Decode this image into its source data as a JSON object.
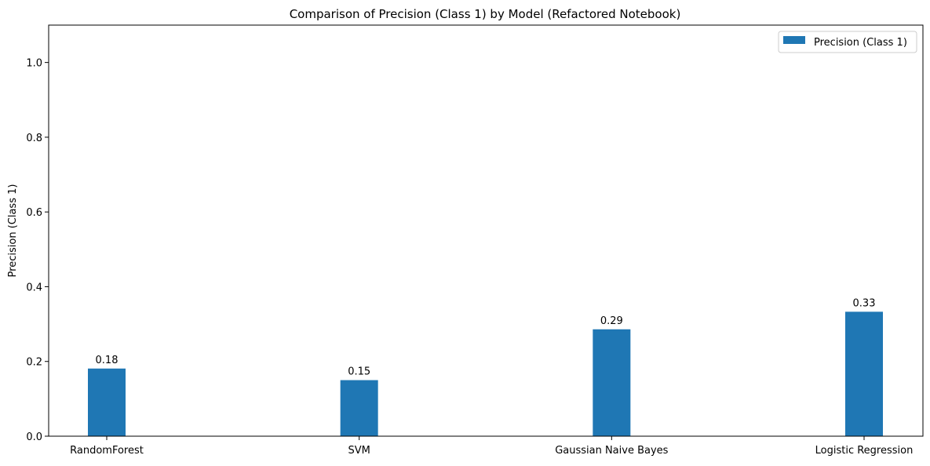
{
  "chart_data": {
    "type": "bar",
    "title": "Comparison of Precision (Class 1) by Model (Refactored Notebook)",
    "xlabel": "",
    "ylabel": "Precision (Class 1)",
    "categories": [
      "RandomForest",
      "SVM",
      "Gaussian Naive Bayes",
      "Logistic Regression"
    ],
    "series": [
      {
        "name": "Precision (Class 1)",
        "values": [
          0.181,
          0.15,
          0.286,
          0.333
        ],
        "labels": [
          "0.18",
          "0.15",
          "0.29",
          "0.33"
        ],
        "color": "#1f77b4"
      }
    ],
    "ylim": [
      0,
      1.1
    ],
    "yticks": [
      0.0,
      0.2,
      0.4,
      0.6,
      0.8,
      1.0
    ],
    "ytick_labels": [
      "0.0",
      "0.2",
      "0.4",
      "0.6",
      "0.8",
      "1.0"
    ],
    "grid": false,
    "legend_position": "top-right"
  }
}
